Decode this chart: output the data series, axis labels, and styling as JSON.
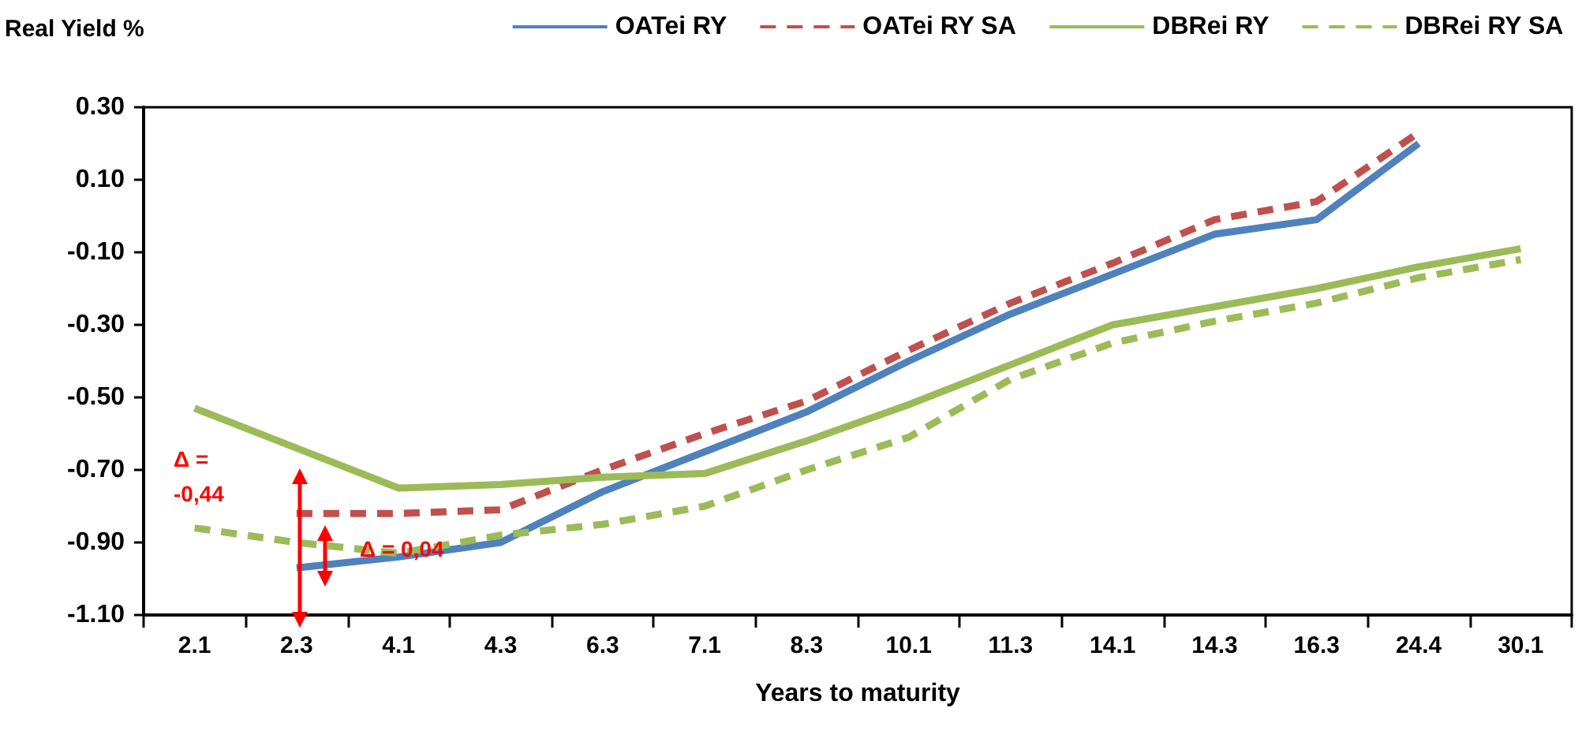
{
  "chart_data": {
    "type": "line",
    "ylabel": "Real Yield %",
    "xlabel": "Years to maturity",
    "categories": [
      "2.1",
      "2.3",
      "4.1",
      "4.3",
      "6.3",
      "7.1",
      "8.3",
      "10.1",
      "11.3",
      "14.1",
      "14.3",
      "16.3",
      "24.4",
      "30.1"
    ],
    "series": [
      {
        "name": "OATei RY",
        "color": "#4f81bd",
        "line_style": "solid",
        "values": [
          null,
          -0.97,
          -0.94,
          -0.9,
          -0.76,
          -0.65,
          -0.54,
          -0.4,
          -0.27,
          -0.16,
          -0.05,
          -0.01,
          0.2,
          null
        ]
      },
      {
        "name": "OATei RY SA",
        "color": "#c0504d",
        "line_style": "dashed",
        "values": [
          null,
          -0.82,
          -0.82,
          -0.81,
          -0.7,
          -0.6,
          -0.51,
          -0.37,
          -0.24,
          -0.13,
          -0.01,
          0.04,
          0.23,
          null
        ]
      },
      {
        "name": "DBRei RY",
        "color": "#9bbb59",
        "line_style": "solid",
        "values": [
          -0.53,
          -0.64,
          -0.75,
          -0.74,
          -0.72,
          -0.71,
          -0.62,
          -0.52,
          -0.41,
          -0.3,
          -0.25,
          -0.2,
          -0.14,
          -0.09
        ]
      },
      {
        "name": "DBRei RY SA",
        "color": "#9bbb59",
        "line_style": "dashed",
        "values": [
          -0.86,
          -0.9,
          -0.93,
          -0.88,
          -0.85,
          -0.8,
          -0.7,
          -0.61,
          -0.45,
          -0.35,
          -0.29,
          -0.24,
          -0.17,
          -0.12
        ]
      }
    ],
    "ylim": [
      -1.1,
      0.3
    ],
    "yticks": [
      {
        "value": -1.1,
        "label": "-1.10"
      },
      {
        "value": -0.9,
        "label": "-0.90"
      },
      {
        "value": -0.7,
        "label": "-0.70"
      },
      {
        "value": -0.5,
        "label": "-0.50"
      },
      {
        "value": -0.3,
        "label": "-0.30"
      },
      {
        "value": -0.1,
        "label": "-0.10"
      },
      {
        "value": 0.1,
        "label": "0.10"
      },
      {
        "value": 0.3,
        "label": "0.30"
      }
    ],
    "grid": false,
    "legend": "top",
    "marker": "none",
    "annotations": [
      "Δ = -0,44",
      "Δ = 0,04"
    ]
  }
}
